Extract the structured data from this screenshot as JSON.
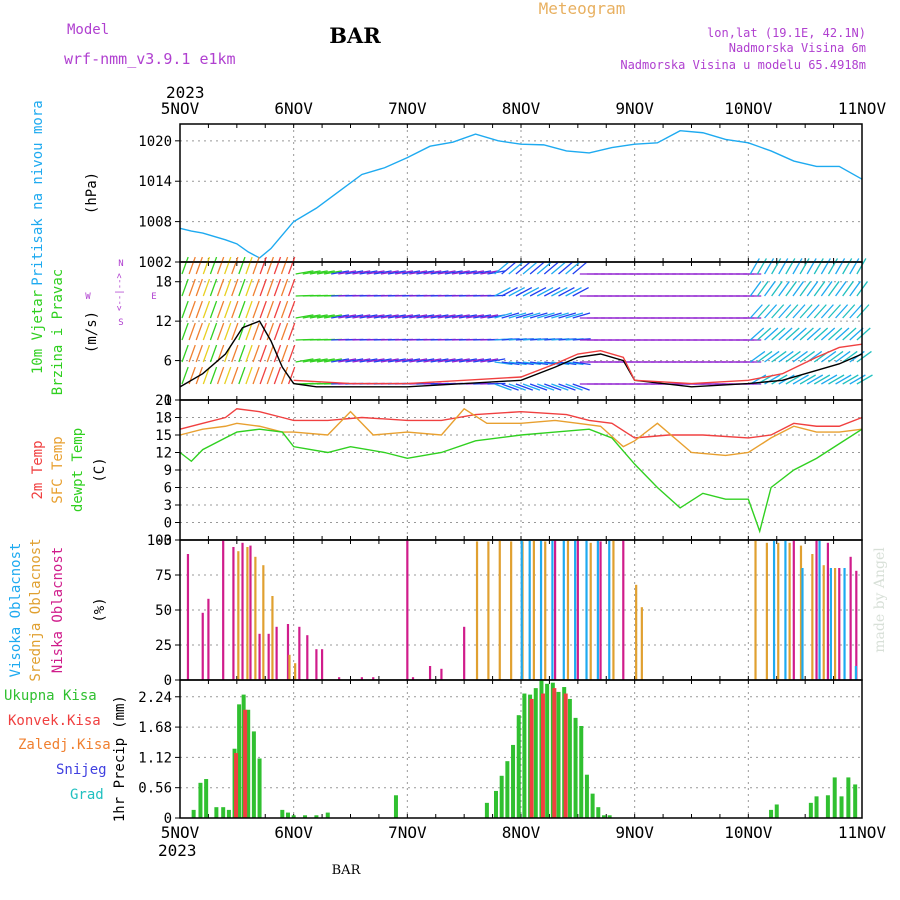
{
  "header": {
    "model_label": "Model",
    "model_name": "wrf-nmm_v3.9.1 e1km",
    "station": "BAR",
    "title": "Meteogram",
    "lonlat": "lon,lat (19.1E, 42.1N)",
    "elevation": "Nadmorska Visina 6m",
    "model_elevation": "Nadmorska Visina u modelu 65.4918m"
  },
  "footer": {
    "station": "BAR",
    "watermark": "made by Angel"
  },
  "colors": {
    "pressure": "#1eaaf0",
    "temp2m": "#f04040",
    "sfc": "#e8a030",
    "dew": "#30d020",
    "high_cloud": "#1eaaf0",
    "mid_cloud": "#e0a030",
    "low_cloud": "#d01c8b",
    "precip_total": "#30c030",
    "precip_conv": "#f04040",
    "precip_frz": "#f08030",
    "snow": "#4040e0",
    "hail": "#20c0c0",
    "purple_text": "#b040d0"
  },
  "chart_data": {
    "type": "meteogram",
    "x_year": "2023",
    "x_ticks": [
      "5NOV",
      "6NOV",
      "7NOV",
      "8NOV",
      "9NOV",
      "10NOV",
      "11NOV"
    ],
    "x_range_days": [
      0,
      6
    ],
    "panels": [
      {
        "id": "pressure",
        "type": "line",
        "ylabel": "Pritisak na nivou mora",
        "unit": "(hPa)",
        "ylim": [
          1002,
          1022.5
        ],
        "yticks": [
          1002,
          1008,
          1014,
          1020
        ],
        "series": [
          {
            "color_key": "pressure",
            "x": [
              0,
              0.1,
              0.2,
              0.3,
              0.4,
              0.5,
              0.6,
              0.7,
              0.8,
              0.9,
              1.0,
              1.2,
              1.4,
              1.6,
              1.8,
              2.0,
              2.2,
              2.4,
              2.6,
              2.8,
              3.0,
              3.2,
              3.4,
              3.6,
              3.8,
              4.0,
              4.2,
              4.4,
              4.6,
              4.8,
              5.0,
              5.2,
              5.4,
              5.6,
              5.8,
              6.0
            ],
            "y": [
              1007,
              1006.6,
              1006.3,
              1005.8,
              1005.3,
              1004.7,
              1003.5,
              1002.6,
              1004,
              1006,
              1008,
              1010,
              1012.5,
              1015,
              1016,
              1017.5,
              1019.2,
              1019.8,
              1021,
              1020,
              1019.5,
              1019.4,
              1018.5,
              1018.2,
              1019,
              1019.5,
              1019.7,
              1021.5,
              1021.2,
              1020.2,
              1019.7,
              1018.5,
              1017,
              1016.2,
              1016.2,
              1014.3
            ]
          }
        ]
      },
      {
        "id": "wind",
        "type": "line",
        "ylabel": "10m Vjetar",
        "ylabel2": "Brzina i Pravac",
        "unit": "(m/s)",
        "compass": [
          "W",
          "<--|-->",
          "E",
          "S",
          "N"
        ],
        "ylim": [
          0,
          21
        ],
        "yticks": [
          0,
          6,
          12,
          18
        ],
        "series": [
          {
            "name": "speed",
            "color_key": "dew",
            "x": [
              0,
              0.2,
              0.4,
              0.55,
              0.7,
              0.8,
              0.9,
              1.0,
              1.2,
              1.5,
              2.0,
              2.5,
              3.0,
              3.3,
              3.5,
              3.7,
              3.9,
              4.0,
              4.5,
              5.0,
              5.3,
              5.6,
              5.8,
              6.0
            ],
            "y": [
              2,
              4,
              7,
              11,
              12,
              9,
              5,
              2.5,
              2,
              2,
              2,
              2.5,
              3,
              5,
              6.5,
              7,
              6,
              3,
              2,
              2.5,
              3,
              4.5,
              5.5,
              7
            ]
          },
          {
            "name": "gust",
            "color_key": "temp2m",
            "x": [
              1.0,
              1.5,
              2.0,
              2.5,
              3.0,
              3.3,
              3.5,
              3.7,
              3.9,
              4.0,
              4.5,
              5.0,
              5.3,
              5.6,
              5.8,
              6.0
            ],
            "y": [
              3,
              2.5,
              2.5,
              3,
              3.5,
              5.5,
              7,
              7.5,
              6.5,
              3,
              2.5,
              3,
              4,
              6.5,
              8,
              8.5
            ]
          }
        ]
      },
      {
        "id": "temperature",
        "type": "line",
        "ylabel": "2m Temp",
        "ylabel2": "SFC Temp",
        "ylabel3": "dewpt Temp",
        "unit": "(C)",
        "ylim": [
          -3,
          21
        ],
        "yticks": [
          -3,
          0,
          3,
          6,
          9,
          12,
          15,
          18,
          21
        ],
        "series": [
          {
            "name": "2m Temp",
            "color_key": "temp2m",
            "x": [
              0,
              0.2,
              0.4,
              0.5,
              0.7,
              0.9,
              1.0,
              1.3,
              1.6,
              2.0,
              2.3,
              2.6,
              3.0,
              3.4,
              3.6,
              3.8,
              4.0,
              4.3,
              4.6,
              5.0,
              5.2,
              5.4,
              5.6,
              5.8,
              6.0
            ],
            "y": [
              16,
              17,
              18,
              19.5,
              19,
              18,
              17.5,
              17.5,
              18,
              17.5,
              17.5,
              18.5,
              19,
              18.5,
              17.5,
              17,
              14.5,
              15,
              15,
              14.5,
              15,
              17,
              16.5,
              16.5,
              18
            ]
          },
          {
            "name": "SFC Temp",
            "color_key": "sfc",
            "x": [
              0,
              0.2,
              0.4,
              0.5,
              0.7,
              0.9,
              1.0,
              1.3,
              1.5,
              1.7,
              2.0,
              2.3,
              2.5,
              2.7,
              3.0,
              3.3,
              3.5,
              3.7,
              3.9,
              4.0,
              4.2,
              4.5,
              4.8,
              5.0,
              5.2,
              5.4,
              5.6,
              5.8,
              6.0
            ],
            "y": [
              15,
              16,
              16.5,
              17,
              16.5,
              15.5,
              15.5,
              15,
              19,
              15,
              15.5,
              15,
              19.5,
              17,
              17,
              17.5,
              17,
              16.5,
              13,
              14,
              17,
              12,
              11.5,
              12,
              14.5,
              16.5,
              15.5,
              15.5,
              16
            ]
          },
          {
            "name": "dewpt Temp",
            "color_key": "dew",
            "x": [
              0,
              0.1,
              0.2,
              0.4,
              0.5,
              0.7,
              0.9,
              1.0,
              1.3,
              1.5,
              1.8,
              2.0,
              2.3,
              2.6,
              3.0,
              3.3,
              3.6,
              3.8,
              4.0,
              4.2,
              4.4,
              4.6,
              4.8,
              5.0,
              5.1,
              5.2,
              5.4,
              5.6,
              5.8,
              6.0
            ],
            "y": [
              12,
              10.5,
              12.5,
              14.5,
              15.5,
              16,
              15.5,
              13,
              12,
              13,
              12,
              11,
              12,
              14,
              15,
              15.5,
              16,
              14.5,
              10,
              6,
              2.5,
              5,
              4,
              4,
              -1.5,
              6,
              9,
              11,
              13.5,
              16
            ]
          }
        ]
      },
      {
        "id": "cloud",
        "type": "bar",
        "ylabel": "Visoka Oblacnost",
        "ylabel2": "Srednja Oblacnost",
        "ylabel3": "Niska Oblacnost",
        "unit": "(%)",
        "ylim": [
          0,
          100
        ],
        "yticks": [
          0,
          25,
          50,
          75,
          100
        ],
        "series": [
          {
            "name": "Niska Oblacnost",
            "color_key": "low_cloud",
            "x": [
              0.07,
              0.2,
              0.25,
              0.38,
              0.47,
              0.55,
              0.62,
              0.7,
              0.78,
              0.85,
              0.95,
              1.05,
              1.12,
              1.2,
              1.25,
              1.4,
              1.6,
              1.7,
              2.0,
              2.05,
              2.2,
              2.3,
              2.5,
              3.3,
              3.5,
              3.7,
              3.9,
              5.4,
              5.6,
              5.7,
              5.8,
              5.9,
              5.95
            ],
            "y": [
              90,
              48,
              58,
              100,
              95,
              98,
              96,
              33,
              33,
              38,
              40,
              38,
              32,
              22,
              22,
              2,
              2,
              2,
              100,
              2,
              10,
              8,
              38,
              100,
              100,
              99,
              100,
              100,
              100,
              98,
              80,
              88,
              78
            ]
          },
          {
            "name": "Srednja Oblacnost",
            "color_key": "mid_cloud",
            "x": [
              0.5,
              0.58,
              0.65,
              0.72,
              0.8,
              0.95,
              1.0,
              2.6,
              2.7,
              2.8,
              2.9,
              3.0,
              3.1,
              3.2,
              3.4,
              3.6,
              3.8,
              4.0,
              4.05,
              5.05,
              5.15,
              5.25,
              5.35,
              5.45,
              5.55,
              5.65,
              5.75
            ],
            "y": [
              92,
              95,
              88,
              82,
              60,
              18,
              12,
              99,
              99,
              100,
              99,
              99,
              100,
              99,
              100,
              98,
              100,
              68,
              52,
              100,
              98,
              98,
              98,
              96,
              90,
              82,
              80
            ]
          },
          {
            "name": "Visoka Oblacnost",
            "color_key": "high_cloud",
            "x": [
              2.98,
              3.05,
              3.15,
              3.25,
              3.35,
              3.45,
              3.55,
              3.65,
              3.75,
              5.2,
              5.3,
              5.45,
              5.6,
              5.7,
              5.82,
              5.92
            ],
            "y": [
              100,
              100,
              100,
              100,
              100,
              100,
              100,
              100,
              100,
              100,
              100,
              80,
              100,
              80,
              80,
              10
            ]
          }
        ]
      },
      {
        "id": "precip",
        "type": "bar",
        "ylabel": "1hr Precip",
        "unit": "(mm)",
        "ylim": [
          0,
          2.55
        ],
        "yticks": [
          0,
          0.56,
          1.12,
          1.68,
          2.24
        ],
        "legend": [
          "Ukupna Kisa",
          "Konvek.Kisa",
          "Zaledj.Kisa",
          "Snijeg",
          "Grad"
        ],
        "series": [
          {
            "name": "Ukupna Kisa",
            "color_key": "precip_total",
            "x": [
              0.12,
              0.18,
              0.23,
              0.32,
              0.38,
              0.43,
              0.48,
              0.52,
              0.56,
              0.6,
              0.65,
              0.7,
              0.9,
              0.95,
              1.0,
              1.1,
              1.2,
              1.3,
              1.9,
              2.7,
              2.78,
              2.83,
              2.88,
              2.93,
              2.98,
              3.03,
              3.08,
              3.13,
              3.18,
              3.23,
              3.28,
              3.33,
              3.38,
              3.43,
              3.48,
              3.53,
              3.58,
              3.63,
              3.68,
              3.73,
              3.78,
              5.2,
              5.25,
              5.55,
              5.6,
              5.7,
              5.76,
              5.82,
              5.88,
              5.94
            ],
            "y": [
              0.15,
              0.65,
              0.72,
              0.2,
              0.2,
              0.15,
              1.28,
              2.1,
              2.28,
              2.0,
              1.6,
              1.1,
              0.15,
              0.1,
              0.05,
              0.05,
              0.05,
              0.1,
              0.42,
              0.28,
              0.5,
              0.78,
              1.05,
              1.35,
              1.9,
              2.3,
              2.28,
              2.4,
              2.55,
              2.48,
              2.5,
              2.33,
              2.42,
              2.2,
              1.85,
              1.7,
              0.8,
              0.45,
              0.2,
              0.05,
              0.05,
              0.15,
              0.25,
              0.28,
              0.4,
              0.42,
              0.75,
              0.4,
              0.75,
              0.62
            ]
          },
          {
            "name": "Konvek.Kisa",
            "color_key": "precip_conv",
            "x": [
              0.48,
              0.56,
              3.08,
              3.18,
              3.28,
              3.38
            ],
            "y": [
              1.2,
              2.0,
              2.2,
              2.3,
              2.4,
              2.3
            ]
          }
        ]
      }
    ]
  }
}
